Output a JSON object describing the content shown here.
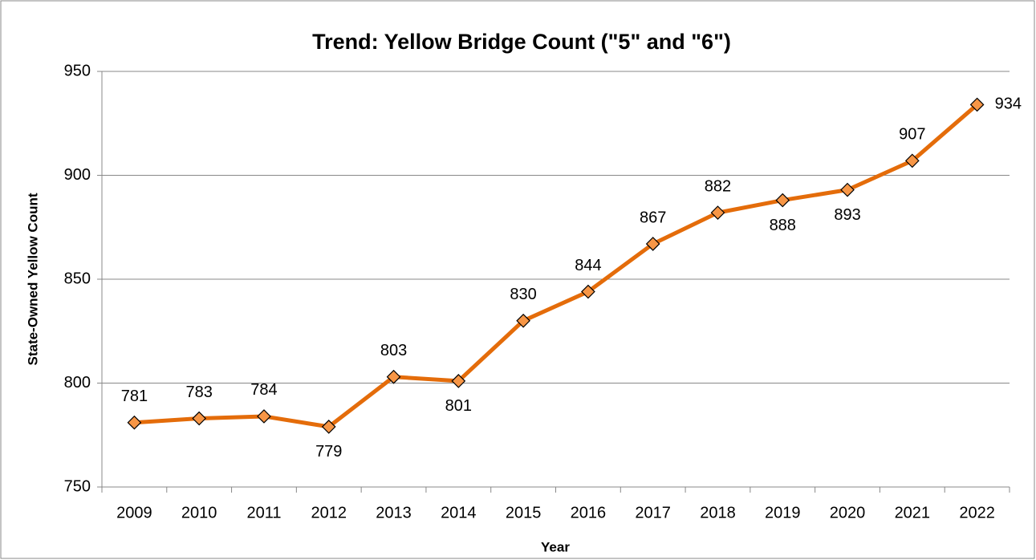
{
  "chart_data": {
    "type": "line",
    "title": "Trend: Yellow Bridge Count (\"5\" and \"6\")",
    "x_label": "Year",
    "y_label": "State-Owned Yellow Count",
    "categories": [
      "2009",
      "2010",
      "2011",
      "2012",
      "2013",
      "2014",
      "2015",
      "2016",
      "2017",
      "2018",
      "2019",
      "2020",
      "2021",
      "2022"
    ],
    "series": [
      {
        "name": "State-Owned Yellow Count",
        "color": "#e46c0a",
        "marker_color": "#f79646",
        "values": [
          781,
          783,
          784,
          779,
          803,
          801,
          830,
          844,
          867,
          882,
          888,
          893,
          907,
          934
        ]
      }
    ],
    "ylim": [
      750,
      950
    ],
    "yticks": [
      750,
      800,
      850,
      900,
      950
    ],
    "grid": true
  }
}
